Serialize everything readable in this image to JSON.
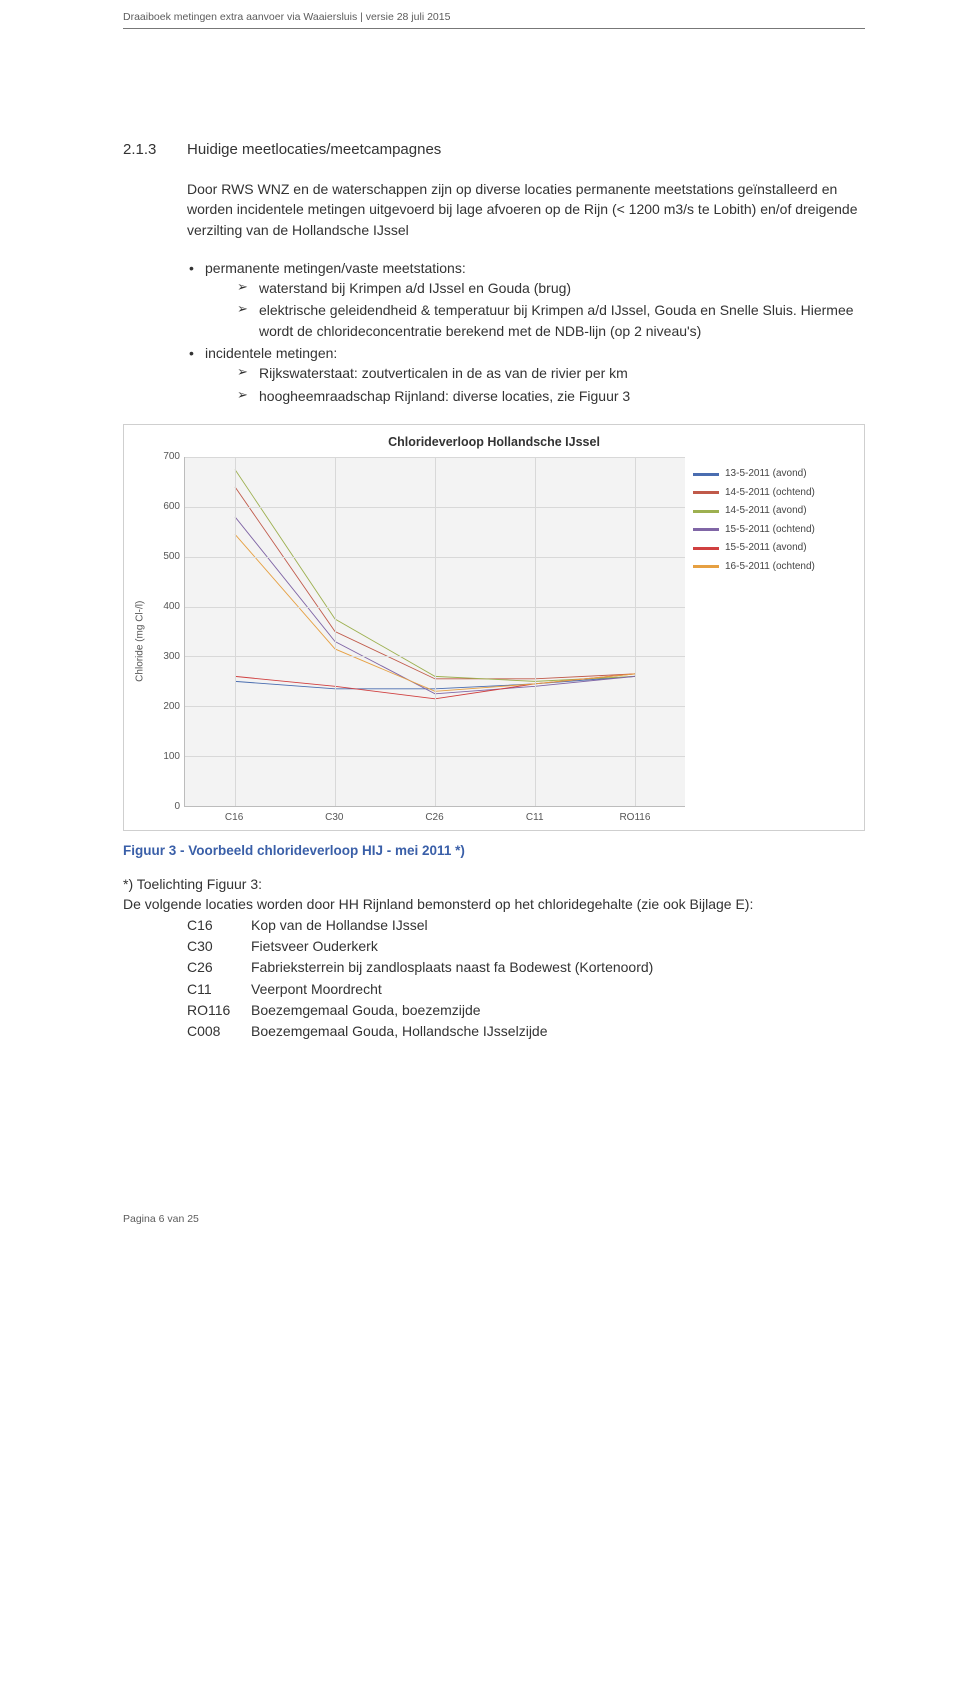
{
  "doc": {
    "header": "Draaiboek metingen extra aanvoer via Waaiersluis | versie 28 juli 2015",
    "footer": "Pagina 6 van 25"
  },
  "section": {
    "number": "2.1.3",
    "title": "Huidige meetlocaties/meetcampagnes"
  },
  "intro": "Door RWS WNZ en de waterschappen zijn op diverse locaties permanente meetstations geïnstalleerd en worden incidentele metingen uitgevoerd bij lage afvoeren op de Rijn (< 1200 m3/s te Lobith) en/of dreigende verzilting van de Hollandsche IJssel",
  "bullets": {
    "perm_title": "permanente metingen/vaste meetstations:",
    "perm": [
      "waterstand bij Krimpen a/d IJssel en Gouda (brug)",
      "elektrische geleidendheid & temperatuur bij Krimpen a/d IJssel, Gouda en Snelle Sluis. Hiermee wordt de chlorideconcentratie berekend met de NDB-lijn (op 2 niveau's)"
    ],
    "inc_title": "incidentele metingen:",
    "inc": [
      "Rijkswaterstaat: zoutverticalen in de as van de rivier per km",
      "hoogheemraadschap Rijnland: diverse locaties, zie Figuur 3"
    ]
  },
  "chart": {
    "title": "Chlorideverloop Hollandsche IJssel",
    "ylabel": "Chloride (mg Cl-/l)",
    "background_color": "#f3f3f3",
    "grid_color": "#d8d8d8",
    "ylim": [
      0,
      700
    ],
    "ytick_step": 100,
    "yticks": [
      "0",
      "100",
      "200",
      "300",
      "400",
      "500",
      "600",
      "700"
    ],
    "xcats": [
      "C16",
      "C30",
      "C26",
      "C11",
      "RO116"
    ],
    "series": [
      {
        "label": "13-5-2011 (avond)",
        "color": "#4a6db0",
        "values": [
          250,
          235,
          235,
          245,
          260
        ]
      },
      {
        "label": "14-5-2011 (ochtend)",
        "color": "#c05a4a",
        "values": [
          640,
          350,
          255,
          255,
          265
        ]
      },
      {
        "label": "14-5-2011 (avond)",
        "color": "#9db050",
        "values": [
          675,
          375,
          260,
          250,
          260
        ]
      },
      {
        "label": "15-5-2011 (ochtend)",
        "color": "#8066a6",
        "values": [
          580,
          330,
          225,
          240,
          260
        ]
      },
      {
        "label": "15-5-2011 (avond)",
        "color": "#d04040",
        "values": [
          260,
          240,
          215,
          245,
          265
        ]
      },
      {
        "label": "16-5-2011 (ochtend)",
        "color": "#e6a042",
        "values": [
          545,
          315,
          230,
          245,
          265
        ]
      }
    ]
  },
  "figcaption": "Figuur 3 - Voorbeeld chlorideverloop HIJ - mei 2011 *)",
  "toelichting": {
    "title": "*) Toelichting Figuur 3:",
    "line": "De volgende locaties worden door HH Rijnland bemonsterd op het chloridegehalte (zie ook Bijlage E):",
    "codes": [
      {
        "k": "C16",
        "v": "Kop van de Hollandse IJssel"
      },
      {
        "k": "C30",
        "v": "Fietsveer Ouderkerk"
      },
      {
        "k": "C26",
        "v": "Fabrieksterrein bij zandlosplaats naast fa Bodewest (Kortenoord)"
      },
      {
        "k": "C11",
        "v": "Veerpont Moordrecht"
      },
      {
        "k": "RO116",
        "v": "Boezemgemaal Gouda, boezemzijde"
      },
      {
        "k": "C008",
        "v": "Boezemgemaal Gouda, Hollandsche IJsselzijde"
      }
    ]
  }
}
